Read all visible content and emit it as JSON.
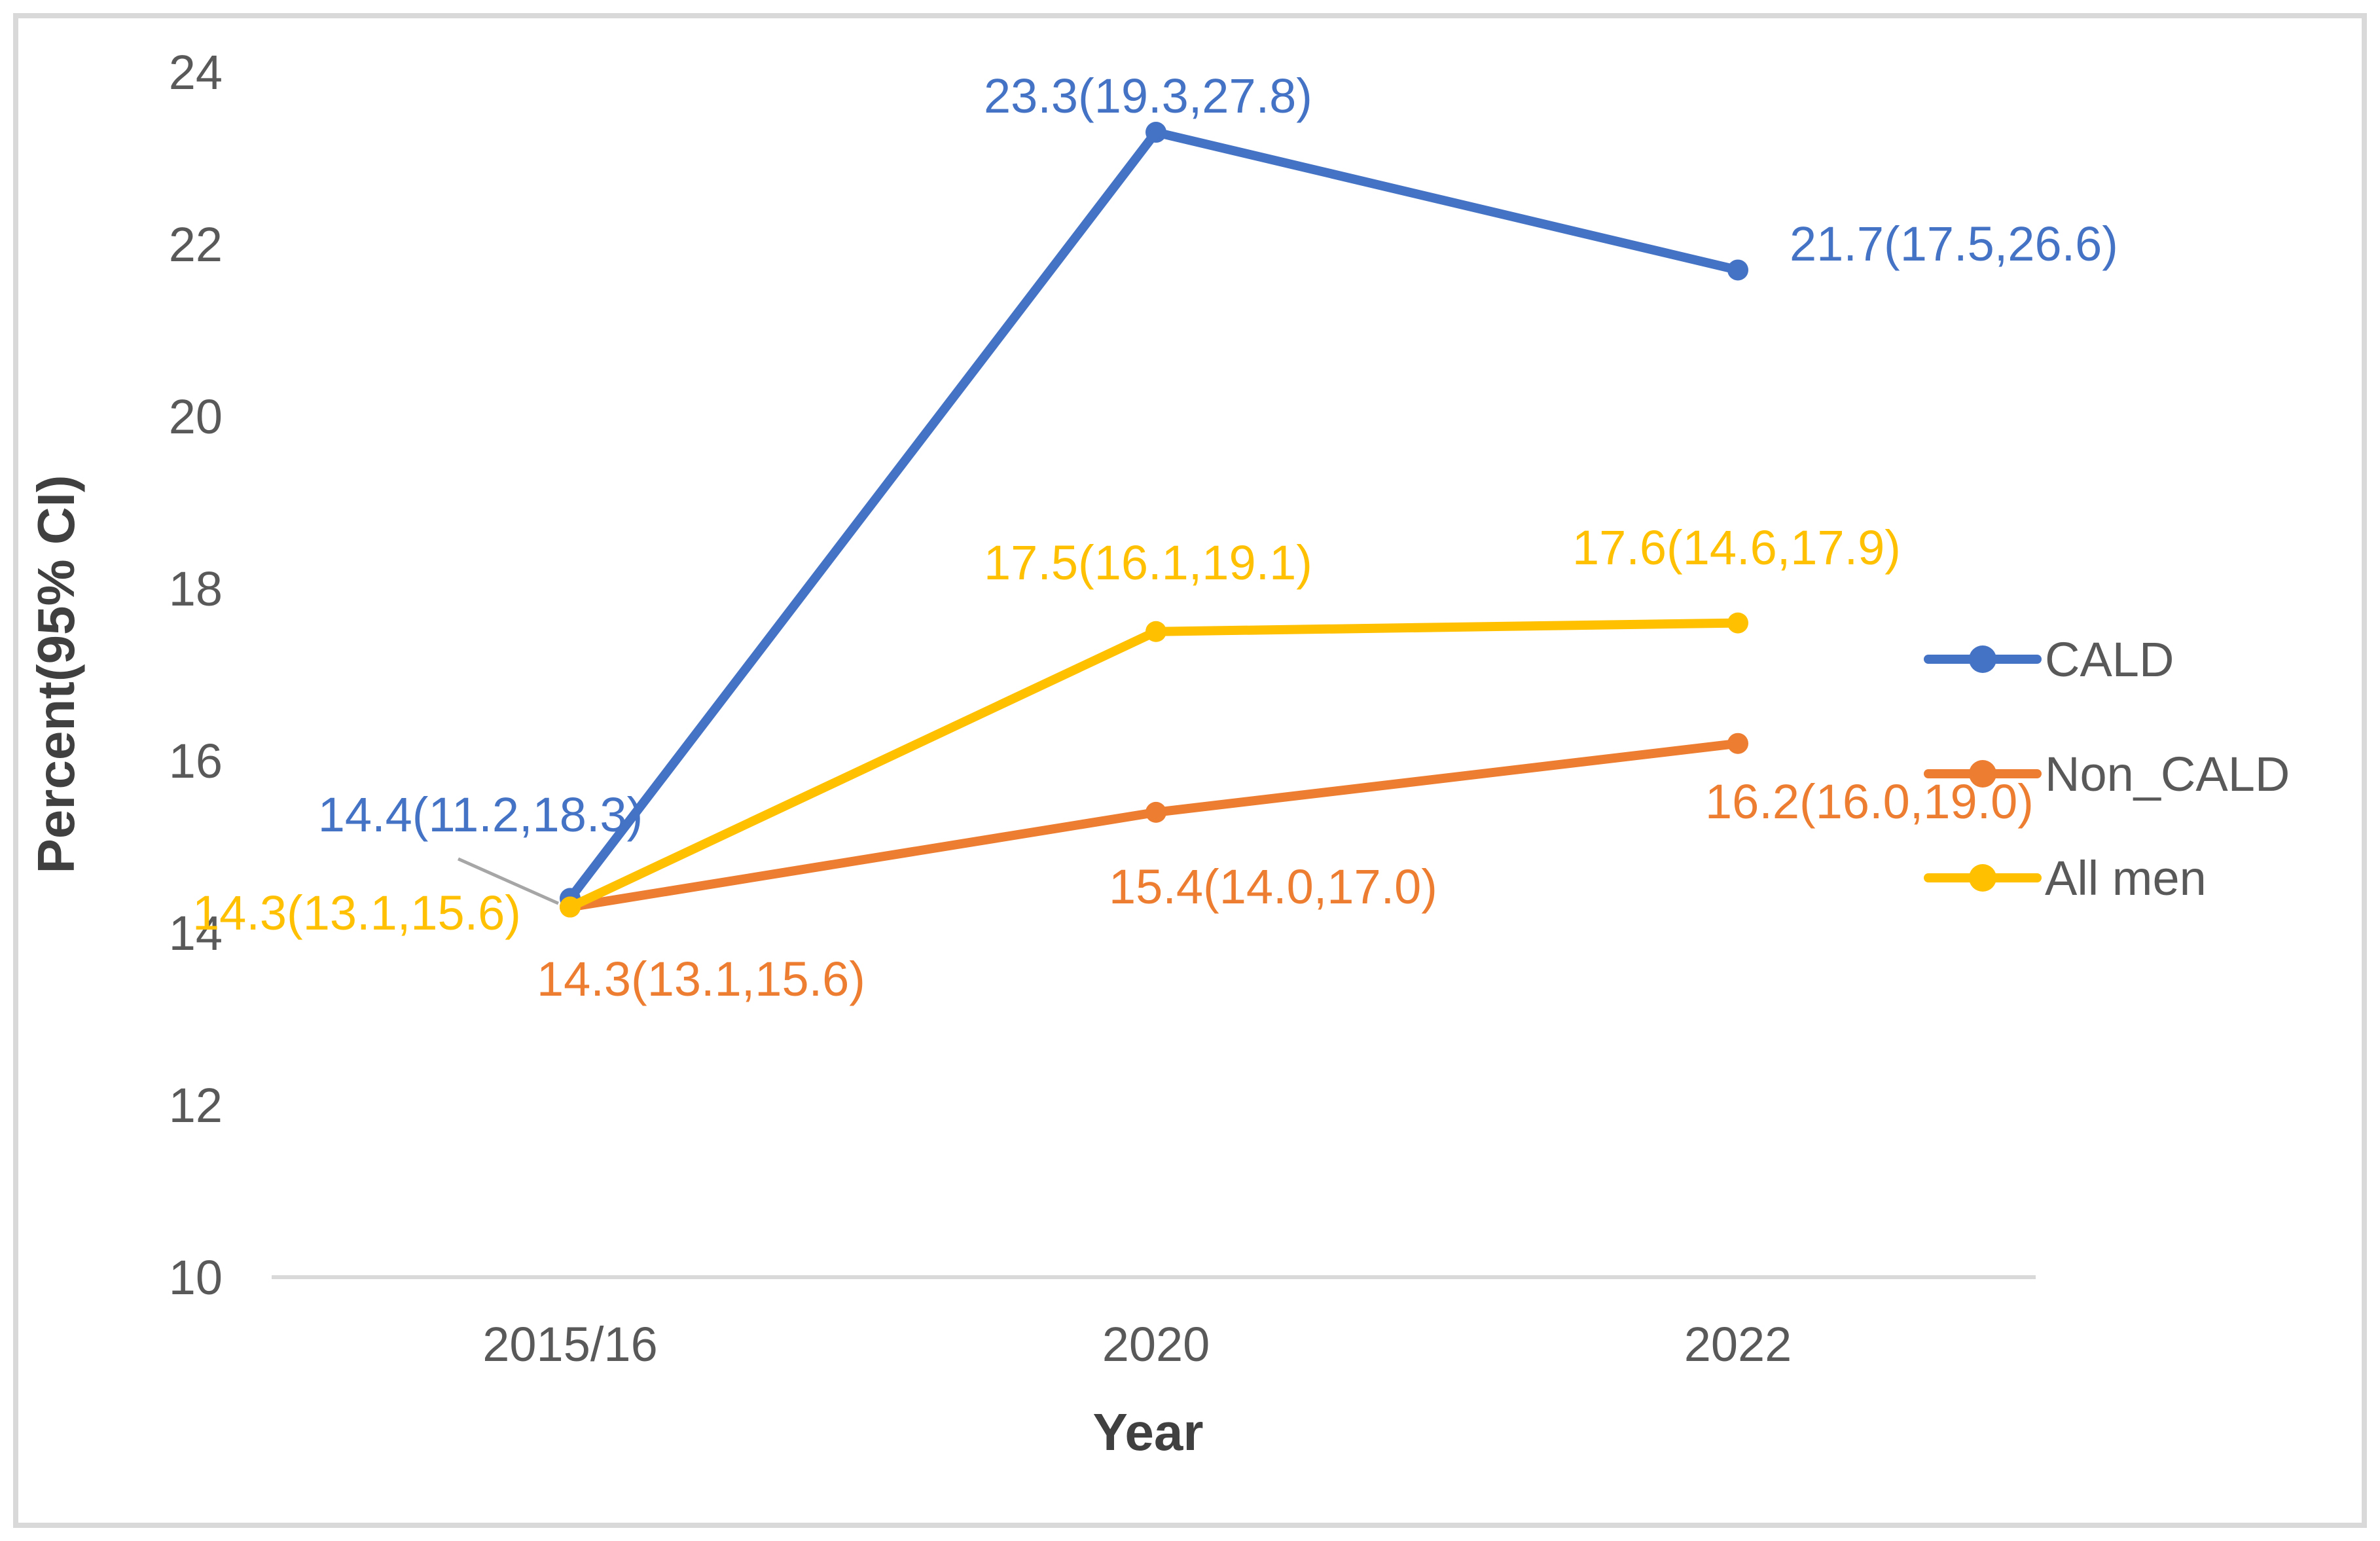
{
  "frame": {
    "background_color": "#FFFFFF",
    "border_color": "#D9D9D9"
  },
  "chart_data": {
    "type": "line",
    "title": "",
    "xlabel": "Year",
    "ylabel": "Percent(95% CI)",
    "categories": [
      "2015/16",
      "2020",
      "2022"
    ],
    "ylim": [
      10,
      24
    ],
    "yticks": [
      10,
      12,
      14,
      16,
      18,
      20,
      22,
      24
    ],
    "grid": false,
    "legend_position": "center-right",
    "axis_line_color": "#D9D9D9",
    "tick_label_color": "#595959",
    "axis_title_color": "#404040",
    "legend_text_color": "#595959",
    "leader_line_color": "#A6A6A6",
    "series": [
      {
        "name": "CALD",
        "color": "#4472C4",
        "values": [
          14.4,
          23.3,
          21.7
        ],
        "point_labels": [
          "14.4(11.2,18.3)",
          "23.3(19.3,27.8)",
          "21.7(17.5,26.6)"
        ]
      },
      {
        "name": "Non_CALD",
        "color": "#ED7D31",
        "values": [
          14.3,
          15.4,
          16.2
        ],
        "point_labels": [
          "14.3(13.1,15.6)",
          "15.4(14.0,17.0)",
          "16.2(16.0,19.0)"
        ]
      },
      {
        "name": "All men",
        "color": "#FFC000",
        "values": [
          14.3,
          17.5,
          17.6
        ],
        "point_labels": [
          "14.3(13.1,15.6)",
          "17.5(16.1,19.1)",
          "17.6(14.6,17.9)"
        ]
      }
    ]
  }
}
